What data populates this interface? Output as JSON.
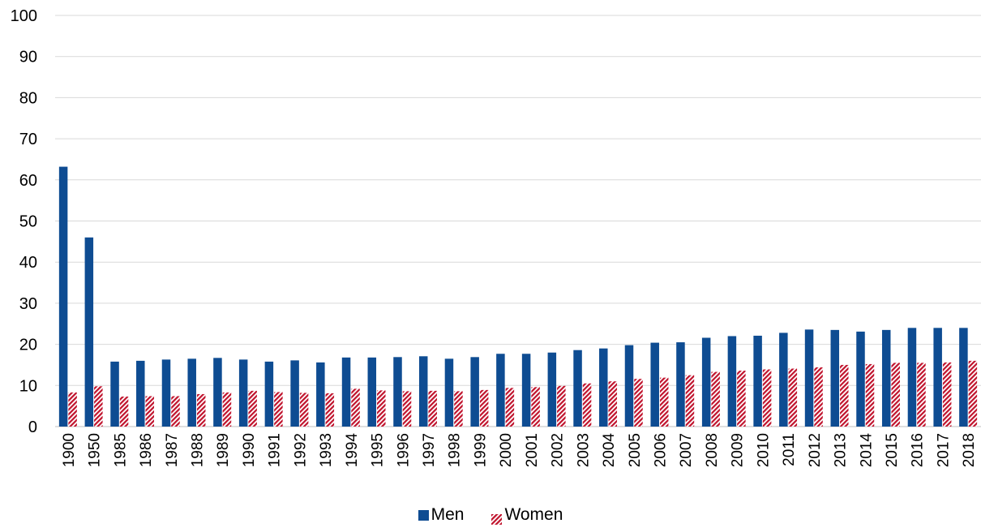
{
  "chart_data": {
    "type": "bar",
    "categories": [
      "1900",
      "1950",
      "1985",
      "1986",
      "1987",
      "1988",
      "1989",
      "1990",
      "1991",
      "1992",
      "1993",
      "1994",
      "1995",
      "1996",
      "1997",
      "1998",
      "1999",
      "2000",
      "2001",
      "2002",
      "2003",
      "2004",
      "2005",
      "2006",
      "2007",
      "2008",
      "2009",
      "2010",
      "2011",
      "2012",
      "2013",
      "2014",
      "2015",
      "2016",
      "2017",
      "2018"
    ],
    "series": [
      {
        "name": "Men",
        "color": "#0e4c92",
        "pattern": "solid",
        "values": [
          63.2,
          46.0,
          15.8,
          16.0,
          16.3,
          16.5,
          16.7,
          16.3,
          15.8,
          16.1,
          15.6,
          16.8,
          16.8,
          16.9,
          17.1,
          16.5,
          16.9,
          17.7,
          17.7,
          18.0,
          18.6,
          19.0,
          19.8,
          20.4,
          20.5,
          21.6,
          22.0,
          22.1,
          22.8,
          23.6,
          23.5,
          23.1,
          23.5,
          24.0,
          24.0,
          24.0
        ]
      },
      {
        "name": "Women",
        "color": "#c0122c",
        "pattern": "diagonal-hatch",
        "values": [
          8.3,
          9.8,
          7.3,
          7.4,
          7.4,
          7.9,
          8.3,
          8.7,
          8.4,
          8.2,
          8.1,
          9.2,
          8.8,
          8.6,
          8.7,
          8.6,
          8.9,
          9.4,
          9.6,
          9.9,
          10.5,
          11.0,
          11.6,
          11.9,
          12.5,
          13.3,
          13.6,
          13.9,
          14.1,
          14.4,
          15.0,
          15.2,
          15.5,
          15.5,
          15.6,
          16.0
        ]
      }
    ],
    "yticks": [
      "0",
      "10",
      "20",
      "30",
      "40",
      "50",
      "60",
      "70",
      "80",
      "90",
      "100"
    ],
    "ylim": [
      0,
      100
    ],
    "grid": true,
    "legend_position": "bottom-center",
    "title": "",
    "xlabel": "",
    "ylabel": ""
  }
}
